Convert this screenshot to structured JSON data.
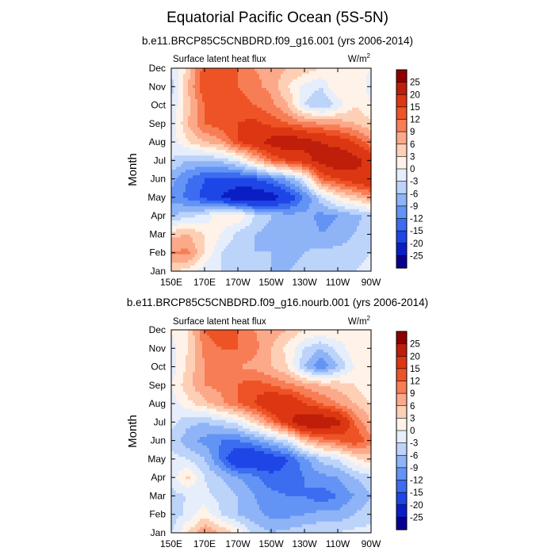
{
  "main_title": "Equatorial Pacific Ocean (5S-5N)",
  "colors": [
    "#08008f",
    "#0b1ec4",
    "#1e46e6",
    "#3c6cf0",
    "#6394f5",
    "#8eb4f7",
    "#bcd3fa",
    "#e6eefc",
    "#fff2e8",
    "#fdd0b6",
    "#fca98a",
    "#f77d55",
    "#ee5326",
    "#dc3713",
    "#be1e0a",
    "#8e0000"
  ],
  "chart_data": [
    {
      "type": "heatmap",
      "title": "b.e11.BRCP85C5CNBDRD.f09_g16.001 (yrs 2006-2014)",
      "variable": "Surface latent heat flux",
      "units": "W/m",
      "units_sup": "2",
      "xlabel": "",
      "ylabel": "Month",
      "x_ticks": [
        "150E",
        "170E",
        "170W",
        "150W",
        "130W",
        "110W",
        "90W"
      ],
      "y_ticks": [
        "Jan",
        "Feb",
        "Mar",
        "Apr",
        "May",
        "Jun",
        "Jul",
        "Aug",
        "Sep",
        "Oct",
        "Nov",
        "Dec"
      ],
      "colorbar_levels": [
        "25",
        "20",
        "15",
        "12",
        "9",
        "6",
        "3",
        "0",
        "-3",
        "-6",
        "-9",
        "-12",
        "-15",
        "-20",
        "-25"
      ],
      "x": [
        150,
        160,
        170,
        180,
        190,
        200,
        210,
        220,
        230,
        240,
        250,
        260,
        270
      ],
      "y": [
        "Jan",
        "Feb",
        "Mar",
        "Apr",
        "May",
        "Jun",
        "Jul",
        "Aug",
        "Sep",
        "Oct",
        "Nov",
        "Dec"
      ],
      "z": [
        [
          3,
          2,
          -2,
          -3,
          -4,
          -5,
          -6,
          -6,
          -5,
          -4,
          -4,
          -3,
          -2
        ],
        [
          9,
          10,
          3,
          -3,
          -5,
          -6,
          -6,
          -7,
          -6,
          -5,
          -5,
          -4,
          -3
        ],
        [
          5,
          6,
          3,
          0,
          -4,
          -6,
          -7,
          -8,
          -7,
          -9,
          -8,
          -6,
          -4
        ],
        [
          -6,
          -4,
          -2,
          2,
          3,
          -3,
          -6,
          -8,
          -8,
          -10,
          -9,
          -7,
          -5
        ],
        [
          -10,
          -13,
          -16,
          -20,
          -25,
          -25,
          -23,
          -18,
          -12,
          -4,
          2,
          5,
          8
        ],
        [
          -8,
          -12,
          -15,
          -16,
          -16,
          -15,
          -12,
          -8,
          -2,
          12,
          15,
          18,
          20
        ],
        [
          -3,
          -6,
          -6,
          -5,
          -2,
          5,
          12,
          15,
          18,
          22,
          25,
          22,
          18
        ],
        [
          -2,
          3,
          6,
          8,
          15,
          18,
          22,
          25,
          22,
          20,
          18,
          15,
          10
        ],
        [
          -2,
          6,
          12,
          14,
          15,
          16,
          14,
          12,
          10,
          9,
          8,
          6,
          4
        ],
        [
          -3,
          5,
          12,
          14,
          14,
          12,
          10,
          6,
          -3,
          -6,
          -2,
          3,
          0
        ],
        [
          -4,
          6,
          15,
          14,
          12,
          10,
          8,
          3,
          -1,
          -3,
          3,
          2,
          -1
        ],
        [
          -3,
          4,
          14,
          15,
          12,
          9,
          8,
          6,
          5,
          3,
          3,
          1,
          0
        ]
      ]
    },
    {
      "type": "heatmap",
      "title": "b.e11.BRCP85C5CNBDRD.f09_g16.nourb.001 (yrs 2006-2014)",
      "variable": "Surface latent heat flux",
      "units": "W/m",
      "units_sup": "2",
      "xlabel": "",
      "ylabel": "Month",
      "x_ticks": [
        "150E",
        "170E",
        "170W",
        "150W",
        "130W",
        "110W",
        "90W"
      ],
      "y_ticks": [
        "Jan",
        "Feb",
        "Mar",
        "Apr",
        "May",
        "Jun",
        "Jul",
        "Aug",
        "Sep",
        "Oct",
        "Nov",
        "Dec"
      ],
      "colorbar_levels": [
        "25",
        "20",
        "15",
        "12",
        "9",
        "6",
        "3",
        "0",
        "-3",
        "-6",
        "-9",
        "-12",
        "-15",
        "-20",
        "-25"
      ],
      "x": [
        150,
        160,
        170,
        180,
        190,
        200,
        210,
        220,
        230,
        240,
        250,
        260,
        270
      ],
      "y": [
        "Jan",
        "Feb",
        "Mar",
        "Apr",
        "May",
        "Jun",
        "Jul",
        "Aug",
        "Sep",
        "Oct",
        "Nov",
        "Dec"
      ],
      "z": [
        [
          -3,
          3,
          9,
          6,
          2,
          -4,
          -6,
          -5,
          -4,
          -3,
          -3,
          -2,
          -2
        ],
        [
          -5,
          -2,
          2,
          -3,
          -6,
          -8,
          -10,
          -10,
          -9,
          -8,
          -8,
          -6,
          -4
        ],
        [
          -4,
          -3,
          -2,
          -4,
          -6,
          -9,
          -11,
          -12,
          -12,
          -14,
          -12,
          -9,
          -6
        ],
        [
          -2,
          4,
          -3,
          -6,
          -9,
          -11,
          -14,
          -14,
          -12,
          -10,
          -9,
          -6,
          -4
        ],
        [
          -2,
          -3,
          -6,
          -13,
          -20,
          -20,
          -18,
          -15,
          -10,
          -5,
          -3,
          2,
          5
        ],
        [
          -4,
          -8,
          -10,
          -12,
          -12,
          -10,
          -6,
          -3,
          6,
          10,
          12,
          15,
          10
        ],
        [
          -2,
          -5,
          -6,
          -4,
          -2,
          4,
          10,
          18,
          25,
          25,
          22,
          12,
          6
        ],
        [
          -2,
          2,
          5,
          8,
          12,
          15,
          20,
          20,
          15,
          12,
          9,
          6,
          3
        ],
        [
          0,
          5,
          9,
          10,
          12,
          14,
          12,
          10,
          8,
          6,
          5,
          3,
          0
        ],
        [
          -2,
          4,
          9,
          10,
          9,
          8,
          6,
          3,
          -6,
          -12,
          -6,
          0,
          0
        ],
        [
          -1,
          3,
          10,
          12,
          12,
          10,
          6,
          2,
          -3,
          -6,
          -2,
          2,
          0
        ],
        [
          0,
          3,
          12,
          15,
          12,
          9,
          8,
          6,
          3,
          3,
          3,
          0,
          0
        ]
      ]
    }
  ]
}
